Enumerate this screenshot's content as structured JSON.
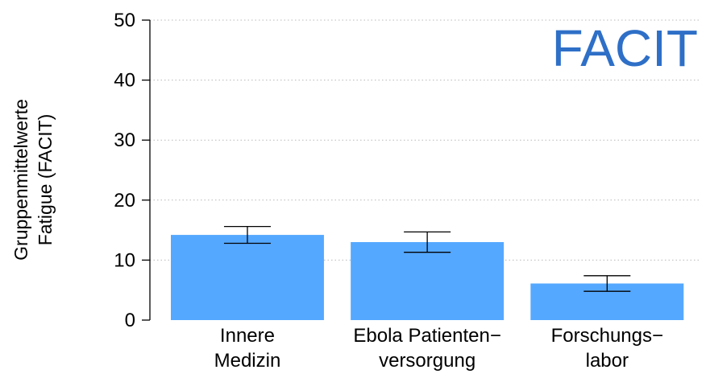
{
  "chart_data": {
    "type": "bar",
    "title": "FACIT",
    "categories": [
      [
        "Innere",
        "Medizin"
      ],
      [
        "Ebola Patienten−",
        "versorgung"
      ],
      [
        "Forschungs−",
        "labor"
      ]
    ],
    "values": [
      14.2,
      13.0,
      6.1
    ],
    "error_low": [
      12.8,
      11.3,
      4.8
    ],
    "error_high": [
      15.6,
      14.7,
      7.4
    ],
    "ylabel": [
      "Gruppenmittelwerte",
      "Fatigue (FACIT)"
    ],
    "ylim": [
      0,
      50
    ],
    "yticks": [
      0,
      10,
      20,
      30,
      40,
      50
    ],
    "grid": true,
    "bar_color": "#55a8ff",
    "title_color": "#2e6fc7"
  }
}
